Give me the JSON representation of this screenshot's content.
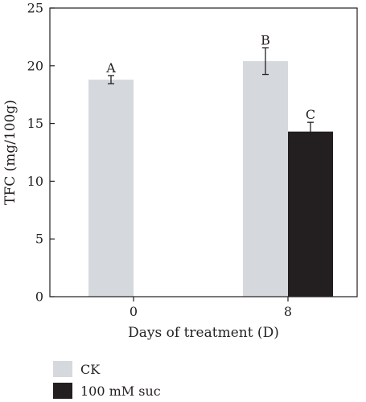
{
  "chart_data": {
    "type": "bar",
    "title": "",
    "xlabel": "Days of treatment (D)",
    "ylabel": "TFC (mg/100g)",
    "ylim": [
      0,
      25
    ],
    "yticks": [
      0,
      5,
      10,
      15,
      20,
      25
    ],
    "categories": [
      "0",
      "8"
    ],
    "series": [
      {
        "name": "CK",
        "color": "#d5d8dc",
        "values": [
          18.8,
          20.4
        ],
        "errors": [
          0.35,
          1.15
        ],
        "labels": [
          "A",
          "B"
        ]
      },
      {
        "name": "100 mM suc",
        "color": "#231f20",
        "values": [
          null,
          14.3
        ],
        "errors": [
          null,
          0.8
        ],
        "labels": [
          null,
          "C"
        ]
      }
    ],
    "legend": "bottom-left",
    "grid": false
  }
}
